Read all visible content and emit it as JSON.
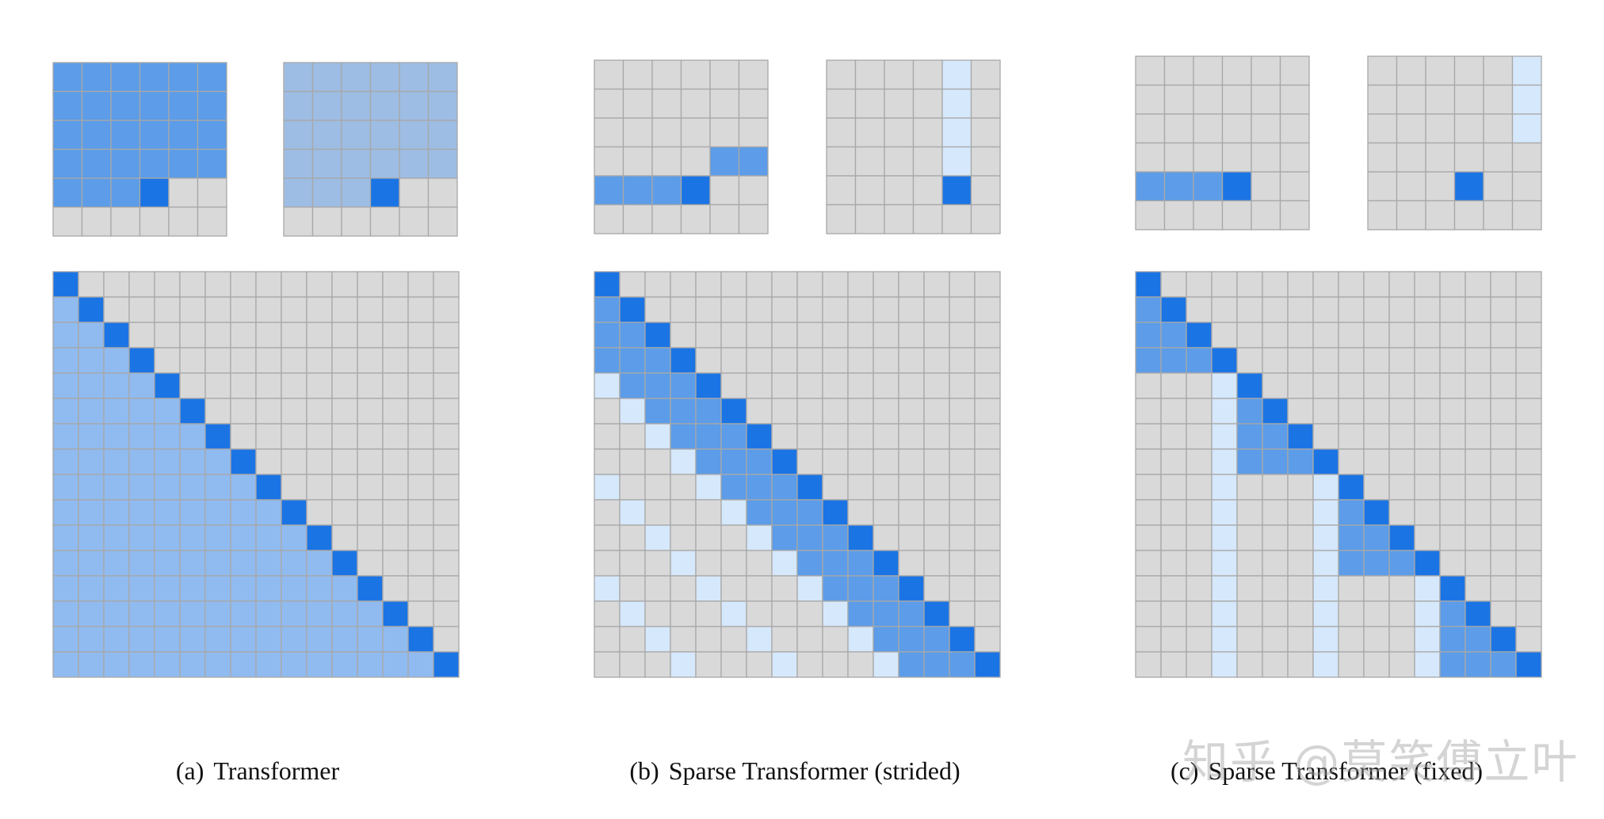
{
  "colors": {
    "empty": "#d9d9d9",
    "grid_line": "#a8a8a8",
    "query": "#1b74e4",
    "attend_dense": "#90bbf0",
    "attend_dense_small": "#9dbde4",
    "attend_local": "#5c9ce8",
    "attend_stride": "#d6e8fb"
  },
  "captions": {
    "a": {
      "label": "(a)",
      "text": "Transformer"
    },
    "b": {
      "label": "(b)",
      "text": "Sparse Transformer (strided)"
    },
    "c": {
      "label": "(c)",
      "text": "Sparse Transformer (fixed)"
    }
  },
  "watermark": "知乎 @莫笑傅立叶",
  "panels": [
    {
      "id": "a",
      "small": [
        {
          "rows": 6,
          "cols": 6,
          "cells": [
            [
              0,
              0,
              "L"
            ],
            [
              0,
              1,
              "L"
            ],
            [
              0,
              2,
              "L"
            ],
            [
              0,
              3,
              "L"
            ],
            [
              0,
              4,
              "L"
            ],
            [
              0,
              5,
              "L"
            ],
            [
              1,
              0,
              "L"
            ],
            [
              1,
              1,
              "L"
            ],
            [
              1,
              2,
              "L"
            ],
            [
              1,
              3,
              "L"
            ],
            [
              1,
              4,
              "L"
            ],
            [
              1,
              5,
              "L"
            ],
            [
              2,
              0,
              "L"
            ],
            [
              2,
              1,
              "L"
            ],
            [
              2,
              2,
              "L"
            ],
            [
              2,
              3,
              "L"
            ],
            [
              2,
              4,
              "L"
            ],
            [
              2,
              5,
              "L"
            ],
            [
              3,
              0,
              "L"
            ],
            [
              3,
              1,
              "L"
            ],
            [
              3,
              2,
              "L"
            ],
            [
              3,
              3,
              "L"
            ],
            [
              3,
              4,
              "L"
            ],
            [
              3,
              5,
              "L"
            ],
            [
              4,
              0,
              "L"
            ],
            [
              4,
              1,
              "L"
            ],
            [
              4,
              2,
              "L"
            ],
            [
              4,
              3,
              "Q"
            ]
          ]
        },
        {
          "rows": 6,
          "cols": 6,
          "cells": [
            [
              0,
              0,
              "M"
            ],
            [
              0,
              1,
              "M"
            ],
            [
              0,
              2,
              "M"
            ],
            [
              0,
              3,
              "M"
            ],
            [
              0,
              4,
              "M"
            ],
            [
              0,
              5,
              "M"
            ],
            [
              1,
              0,
              "M"
            ],
            [
              1,
              1,
              "M"
            ],
            [
              1,
              2,
              "M"
            ],
            [
              1,
              3,
              "M"
            ],
            [
              1,
              4,
              "M"
            ],
            [
              1,
              5,
              "M"
            ],
            [
              2,
              0,
              "M"
            ],
            [
              2,
              1,
              "M"
            ],
            [
              2,
              2,
              "M"
            ],
            [
              2,
              3,
              "M"
            ],
            [
              2,
              4,
              "M"
            ],
            [
              2,
              5,
              "M"
            ],
            [
              3,
              0,
              "M"
            ],
            [
              3,
              1,
              "M"
            ],
            [
              3,
              2,
              "M"
            ],
            [
              3,
              3,
              "M"
            ],
            [
              3,
              4,
              "M"
            ],
            [
              3,
              5,
              "M"
            ],
            [
              4,
              0,
              "M"
            ],
            [
              4,
              1,
              "M"
            ],
            [
              4,
              2,
              "M"
            ],
            [
              4,
              3,
              "Q"
            ]
          ]
        }
      ],
      "big": {
        "n": 16,
        "pattern": "dense"
      }
    },
    {
      "id": "b",
      "small": [
        {
          "rows": 6,
          "cols": 6,
          "cells": [
            [
              3,
              4,
              "L"
            ],
            [
              3,
              5,
              "L"
            ],
            [
              4,
              0,
              "L"
            ],
            [
              4,
              1,
              "L"
            ],
            [
              4,
              2,
              "L"
            ],
            [
              4,
              3,
              "Q"
            ]
          ]
        },
        {
          "rows": 6,
          "cols": 6,
          "cells": [
            [
              0,
              4,
              "S"
            ],
            [
              1,
              4,
              "S"
            ],
            [
              2,
              4,
              "S"
            ],
            [
              3,
              4,
              "S"
            ],
            [
              4,
              4,
              "Q"
            ]
          ]
        }
      ],
      "big": {
        "n": 16,
        "pattern": "strided",
        "local": 4,
        "stride": 4
      }
    },
    {
      "id": "c",
      "small": [
        {
          "rows": 6,
          "cols": 6,
          "cells": [
            [
              4,
              0,
              "L"
            ],
            [
              4,
              1,
              "L"
            ],
            [
              4,
              2,
              "L"
            ],
            [
              4,
              3,
              "Q"
            ]
          ]
        },
        {
          "rows": 6,
          "cols": 6,
          "cells": [
            [
              0,
              5,
              "S"
            ],
            [
              1,
              5,
              "S"
            ],
            [
              2,
              5,
              "S"
            ],
            [
              4,
              3,
              "Q"
            ]
          ]
        }
      ],
      "big": {
        "n": 16,
        "pattern": "fixed",
        "block": 4,
        "columns": [
          3,
          7,
          11
        ]
      }
    }
  ]
}
